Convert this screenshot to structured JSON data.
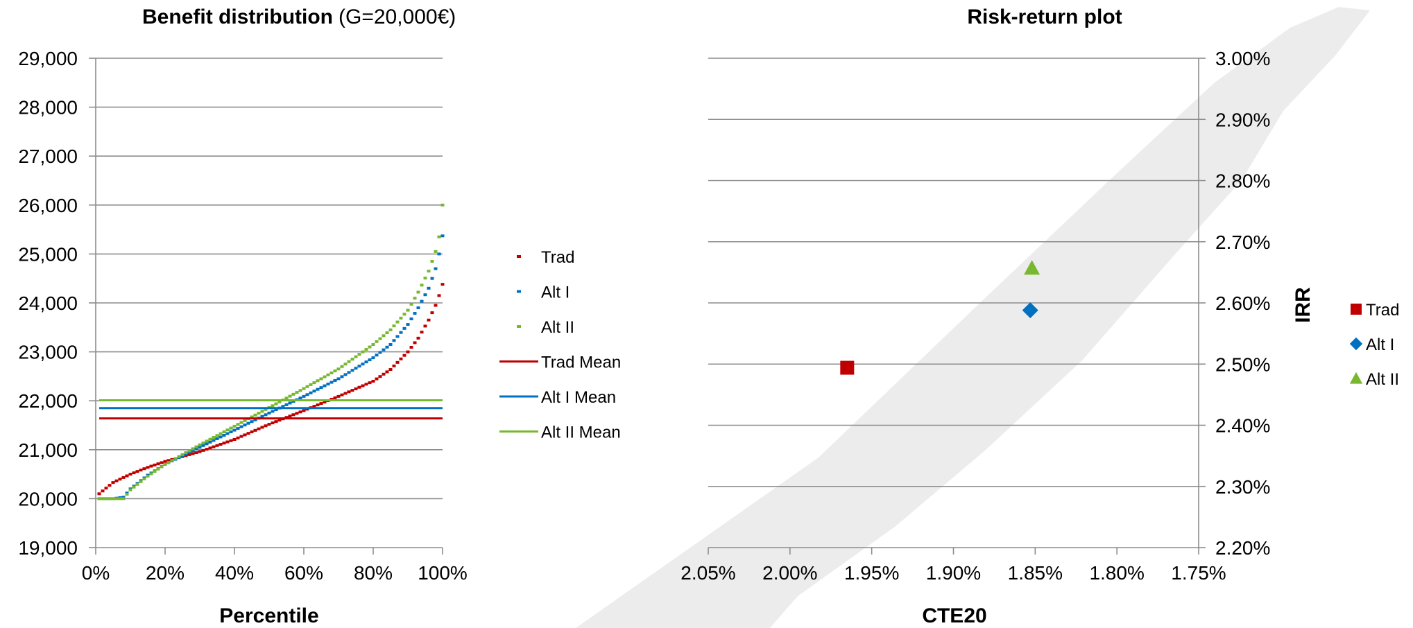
{
  "chart_data": [
    {
      "type": "scatter",
      "title": "Benefit distribution",
      "subtitle": "(G=20,000€)",
      "xlabel": "Percentile",
      "ylabel": "",
      "xlim": [
        0,
        100
      ],
      "ylim": [
        19000,
        29000
      ],
      "x_ticks": [
        "0%",
        "20%",
        "40%",
        "60%",
        "80%",
        "100%"
      ],
      "y_ticks": [
        "19,000",
        "20,000",
        "21,000",
        "22,000",
        "23,000",
        "24,000",
        "25,000",
        "26,000",
        "27,000",
        "28,000",
        "29,000"
      ],
      "grid": "horizontal",
      "legend_position": "right",
      "series": [
        {
          "name": "Trad",
          "color": "#c00000",
          "style": "dash-marker",
          "x": [
            1,
            5,
            10,
            15,
            20,
            30,
            40,
            50,
            60,
            70,
            80,
            85,
            90,
            93,
            96,
            98,
            99,
            100
          ],
          "y": [
            20100,
            20330,
            20500,
            20640,
            20760,
            20960,
            21210,
            21520,
            21800,
            22090,
            22400,
            22640,
            23000,
            23280,
            23650,
            23950,
            24150,
            24380
          ]
        },
        {
          "name": "Alt I",
          "color": "#0070c0",
          "style": "dash-marker",
          "x": [
            1,
            5,
            8,
            10,
            15,
            20,
            30,
            40,
            50,
            60,
            70,
            80,
            85,
            90,
            93,
            96,
            98,
            99,
            100
          ],
          "y": [
            20000,
            20000,
            20030,
            20200,
            20480,
            20700,
            21050,
            21400,
            21750,
            22090,
            22450,
            22880,
            23150,
            23560,
            23900,
            24300,
            24700,
            25000,
            25370
          ]
        },
        {
          "name": "Alt II",
          "color": "#77b82f",
          "style": "dash-marker",
          "x": [
            1,
            5,
            8,
            10,
            15,
            20,
            30,
            40,
            50,
            60,
            70,
            80,
            85,
            90,
            93,
            96,
            98,
            99,
            100
          ],
          "y": [
            20000,
            20000,
            20000,
            20180,
            20460,
            20700,
            21100,
            21480,
            21860,
            22250,
            22650,
            23150,
            23450,
            23850,
            24220,
            24650,
            25050,
            25350,
            26000
          ]
        },
        {
          "name": "Trad Mean",
          "color": "#c00000",
          "style": "line",
          "x": [
            1,
            100
          ],
          "y": [
            21640,
            21640
          ]
        },
        {
          "name": "Alt I Mean",
          "color": "#0070c0",
          "style": "line",
          "x": [
            1,
            100
          ],
          "y": [
            21850,
            21850
          ]
        },
        {
          "name": "Alt II Mean",
          "color": "#77b82f",
          "style": "line",
          "x": [
            1,
            100
          ],
          "y": [
            22010,
            22010
          ]
        }
      ]
    },
    {
      "type": "scatter",
      "title": "Risk-return plot",
      "xlabel": "CTE20",
      "ylabel": "IRR",
      "xlim": [
        2.05,
        1.75
      ],
      "x_reversed": true,
      "ylim": [
        2.2,
        3.0
      ],
      "x_ticks": [
        "2.05%",
        "2.00%",
        "1.95%",
        "1.90%",
        "1.85%",
        "1.80%",
        "1.75%"
      ],
      "y_ticks": [
        "2.20%",
        "2.30%",
        "2.40%",
        "2.50%",
        "2.60%",
        "2.70%",
        "2.80%",
        "2.90%",
        "3.00%"
      ],
      "y_axis_side": "right",
      "grid": "horizontal",
      "legend_position": "right",
      "series": [
        {
          "name": "Trad",
          "color": "#c00000",
          "marker": "square",
          "x": [
            1.965
          ],
          "y": [
            2.494
          ]
        },
        {
          "name": "Alt I",
          "color": "#0070c0",
          "marker": "diamond",
          "x": [
            1.853
          ],
          "y": [
            2.588
          ]
        },
        {
          "name": "Alt II",
          "color": "#77b82f",
          "marker": "triangle",
          "x": [
            1.852
          ],
          "y": [
            2.657
          ]
        }
      ]
    }
  ]
}
